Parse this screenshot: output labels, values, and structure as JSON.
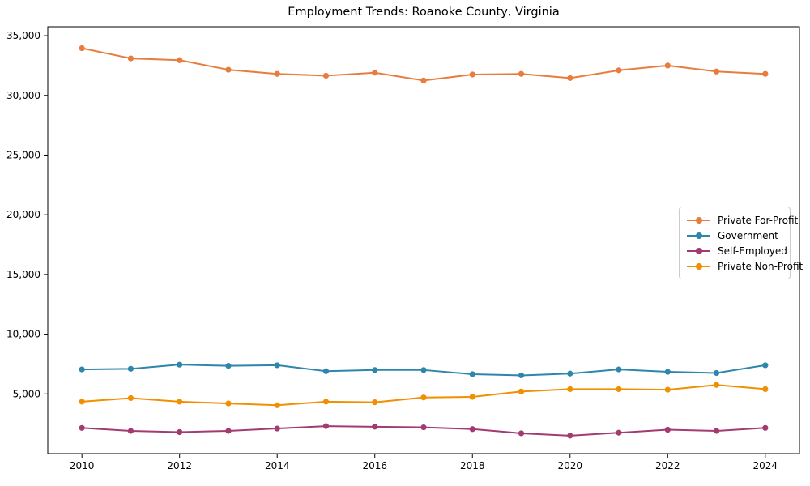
{
  "figure": {
    "background_color": "#ffffff",
    "spine_color": "#000000",
    "tick_label_color": "#000000"
  },
  "chart_data": {
    "type": "line",
    "title": "Employment Trends: Roanoke County, Virginia",
    "xlabel": "",
    "ylabel": "",
    "grid": false,
    "legend_position": "center-right",
    "x": [
      2010,
      2011,
      2012,
      2013,
      2014,
      2015,
      2016,
      2017,
      2018,
      2019,
      2020,
      2021,
      2022,
      2023,
      2024
    ],
    "x_tick_labels": [
      "2010",
      "2012",
      "2014",
      "2016",
      "2018",
      "2020",
      "2022",
      "2024"
    ],
    "x_ticks": [
      2010,
      2012,
      2014,
      2016,
      2018,
      2020,
      2022,
      2024
    ],
    "xlim": [
      2009.3,
      2024.7
    ],
    "y_ticks": [
      5000,
      10000,
      15000,
      20000,
      25000,
      30000,
      35000
    ],
    "y_tick_labels": [
      "5,000",
      "10,000",
      "15,000",
      "20,000",
      "25,000",
      "30,000",
      "35,000"
    ],
    "ylim": [
      0,
      35750
    ],
    "series": [
      {
        "name": "Private For-Profit",
        "color": "#E77C3C",
        "values": [
          33950,
          33100,
          32950,
          32150,
          31800,
          31650,
          31900,
          31250,
          31750,
          31800,
          31450,
          32100,
          32500,
          32000,
          31800
        ]
      },
      {
        "name": "Government",
        "color": "#2E86AB",
        "values": [
          7050,
          7100,
          7450,
          7350,
          7400,
          6900,
          7000,
          7000,
          6650,
          6550,
          6700,
          7050,
          6850,
          6750,
          7400
        ]
      },
      {
        "name": "Self-Employed",
        "color": "#A23B72",
        "values": [
          2150,
          1900,
          1800,
          1900,
          2100,
          2300,
          2250,
          2200,
          2050,
          1700,
          1500,
          1750,
          2000,
          1900,
          2150
        ]
      },
      {
        "name": "Private Non-Profit",
        "color": "#F18F01",
        "values": [
          4350,
          4650,
          4350,
          4200,
          4050,
          4350,
          4300,
          4700,
          4750,
          5200,
          5400,
          5400,
          5350,
          5750,
          5400
        ]
      }
    ]
  }
}
